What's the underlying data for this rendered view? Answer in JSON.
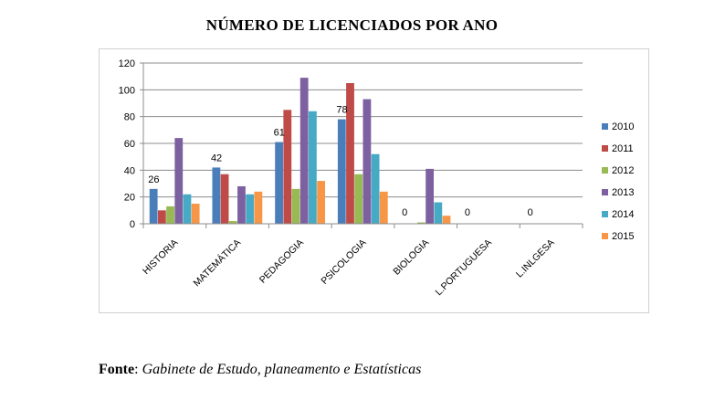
{
  "title": "NÚMERO DE LICENCIADOS POR ANO",
  "source": {
    "label": "Fonte",
    "sep": ":",
    "text": "Gabinete de Estudo, planeamento e Estatísticas"
  },
  "chart_data": {
    "type": "bar",
    "categories": [
      "HISTORIA",
      "MATEMÁTICA",
      "PEDAGOGIA",
      "PSICOLOGIA",
      "BIOLOGIA",
      "L.PORTUGUESA",
      "L.INLGESA"
    ],
    "series": [
      {
        "name": "2010",
        "color": "#4a7ebb",
        "values": [
          26,
          42,
          61,
          78,
          0,
          0,
          0
        ]
      },
      {
        "name": "2011",
        "color": "#be4b48",
        "values": [
          10,
          37,
          85,
          105,
          0,
          0,
          0
        ]
      },
      {
        "name": "2012",
        "color": "#98b954",
        "values": [
          13,
          2,
          26,
          37,
          1,
          0,
          0
        ]
      },
      {
        "name": "2013",
        "color": "#7d60a0",
        "values": [
          64,
          28,
          109,
          93,
          41,
          0,
          0
        ]
      },
      {
        "name": "2014",
        "color": "#46aac5",
        "values": [
          22,
          22,
          84,
          52,
          16,
          0,
          0
        ]
      },
      {
        "name": "2015",
        "color": "#f79646",
        "values": [
          15,
          24,
          32,
          24,
          6,
          0,
          0
        ]
      }
    ],
    "data_labels": {
      "series": "2010",
      "values": [
        "26",
        "42",
        "61",
        "78",
        "0",
        "0",
        "0"
      ]
    },
    "y_ticks": [
      "0",
      "20",
      "40",
      "60",
      "80",
      "100",
      "120"
    ],
    "ylim": [
      0,
      120
    ],
    "grid": true,
    "legend_position": "right"
  }
}
